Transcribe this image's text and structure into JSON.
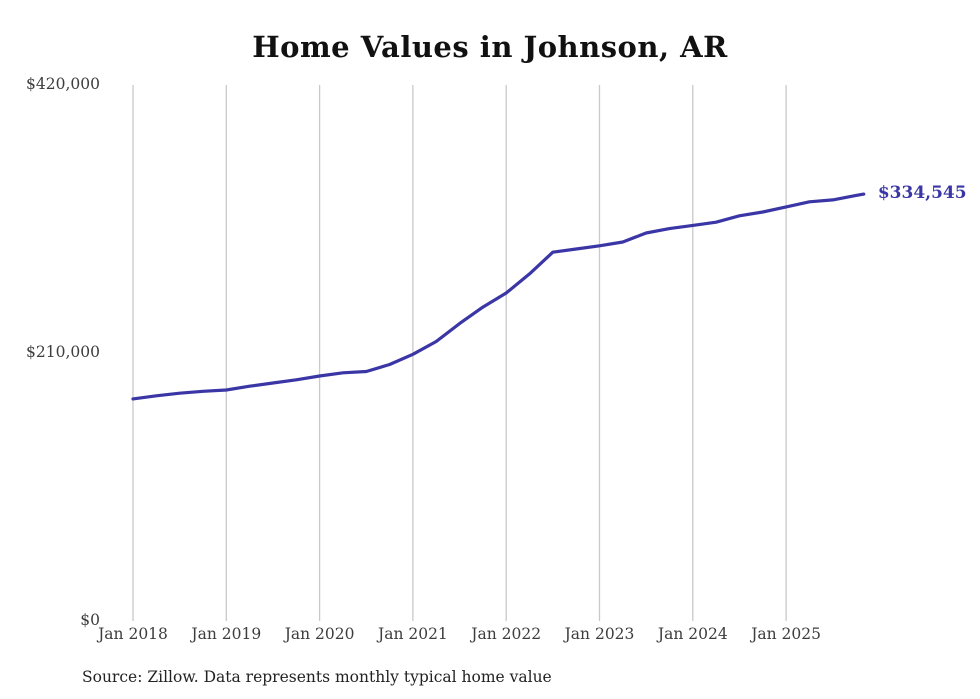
{
  "title": "Home Values in Johnson, AR",
  "value_label": "$334,545",
  "source": "Source: Zillow. Data represents monthly typical home value",
  "colors": {
    "line": "#3a36a5",
    "grid": "#c9c9c9",
    "axis_text": "#3d3d3d",
    "title": "#111111",
    "background": "#ffffff"
  },
  "chart_data": {
    "type": "line",
    "title": "Home Values in Johnson, AR",
    "series_name": "Typical home value",
    "x": [
      "2018-01",
      "2018-04",
      "2018-07",
      "2018-10",
      "2019-01",
      "2019-04",
      "2019-07",
      "2019-10",
      "2020-01",
      "2020-04",
      "2020-07",
      "2020-10",
      "2021-01",
      "2021-04",
      "2021-07",
      "2021-10",
      "2022-01",
      "2022-04",
      "2022-07",
      "2022-10",
      "2023-01",
      "2023-04",
      "2023-07",
      "2023-10",
      "2024-01",
      "2024-04",
      "2024-07",
      "2024-10",
      "2025-01",
      "2025-04",
      "2025-07",
      "2025-10",
      "2025-11"
    ],
    "values": [
      174000,
      176500,
      178500,
      180000,
      181000,
      184000,
      186500,
      189000,
      192000,
      194500,
      195500,
      201000,
      209000,
      219000,
      233000,
      246000,
      257000,
      272000,
      289000,
      291500,
      294000,
      297000,
      304000,
      307500,
      310000,
      312500,
      317500,
      320500,
      324500,
      328500,
      330000,
      333500,
      334545
    ],
    "ylim": [
      0,
      420000
    ],
    "yticks": [
      {
        "value": 0,
        "label": "$0"
      },
      {
        "value": 210000,
        "label": "$210,000"
      },
      {
        "value": 420000,
        "label": "$420,000"
      }
    ],
    "xticks": [
      "Jan 2018",
      "Jan 2019",
      "Jan 2020",
      "Jan 2021",
      "Jan 2022",
      "Jan 2023",
      "Jan 2024",
      "Jan 2025"
    ],
    "grid": "vertical-only",
    "legend": "none",
    "end_label": "$334,545",
    "xlabel": "",
    "ylabel": ""
  }
}
